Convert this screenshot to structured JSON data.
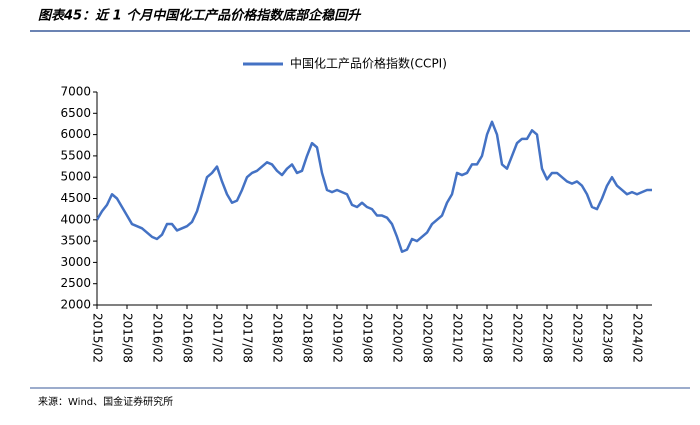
{
  "chart_data": {
    "type": "line",
    "title": "图表45：近 1 个月中国化工产品价格指数底部企稳回升",
    "source": "来源：Wind、国金证券研究所",
    "categories": [
      "2015/02",
      null,
      null,
      null,
      null,
      null,
      "2015/08",
      null,
      null,
      null,
      null,
      null,
      "2016/02",
      null,
      null,
      null,
      null,
      null,
      "2016/08",
      null,
      null,
      null,
      null,
      null,
      "2017/02",
      null,
      null,
      null,
      null,
      null,
      "2017/08",
      null,
      null,
      null,
      null,
      null,
      "2018/02",
      null,
      null,
      null,
      null,
      null,
      "2018/08",
      null,
      null,
      null,
      null,
      null,
      "2019/02",
      null,
      null,
      null,
      null,
      null,
      "2019/08",
      null,
      null,
      null,
      null,
      null,
      "2020/02",
      null,
      null,
      null,
      null,
      null,
      "2020/08",
      null,
      null,
      null,
      null,
      null,
      "2021/02",
      null,
      null,
      null,
      null,
      null,
      "2021/08",
      null,
      null,
      null,
      null,
      null,
      "2022/02",
      null,
      null,
      null,
      null,
      null,
      "2022/08",
      null,
      null,
      null,
      null,
      null,
      "2023/02",
      null,
      null,
      null,
      null,
      null,
      "2023/08",
      null,
      null,
      null,
      null,
      null,
      "2024/02",
      null,
      null,
      null
    ],
    "series": [
      {
        "name": "中国化工产品价格指数(CCPI)",
        "color": "#4472c4",
        "values": [
          4000,
          4200,
          4350,
          4600,
          4500,
          4300,
          4100,
          3900,
          3850,
          3800,
          3700,
          3600,
          3550,
          3650,
          3900,
          3900,
          3750,
          3800,
          3850,
          3950,
          4200,
          4600,
          5000,
          5100,
          5250,
          4900,
          4600,
          4400,
          4450,
          4700,
          5000,
          5100,
          5150,
          5250,
          5350,
          5300,
          5150,
          5050,
          5200,
          5300,
          5100,
          5150,
          5500,
          5800,
          5700,
          5100,
          4700,
          4650,
          4700,
          4650,
          4600,
          4350,
          4300,
          4400,
          4300,
          4250,
          4100,
          4100,
          4050,
          3900,
          3600,
          3250,
          3300,
          3550,
          3500,
          3600,
          3700,
          3900,
          4000,
          4100,
          4400,
          4600,
          5100,
          5050,
          5100,
          5300,
          5300,
          5500,
          6000,
          6300,
          6000,
          5300,
          5200,
          5500,
          5800,
          5900,
          5900,
          6100,
          6000,
          5200,
          4950,
          5100,
          5100,
          5000,
          4900,
          4850,
          4900,
          4800,
          4600,
          4300,
          4250,
          4500,
          4800,
          5000,
          4800,
          4700,
          4600,
          4650,
          4600,
          4650,
          4700,
          4700
        ]
      }
    ],
    "ylim": [
      2000,
      7000
    ],
    "yticks": [
      2000,
      2500,
      3000,
      3500,
      4000,
      4500,
      5000,
      5500,
      6000,
      6500,
      7000
    ],
    "legend": "top"
  }
}
